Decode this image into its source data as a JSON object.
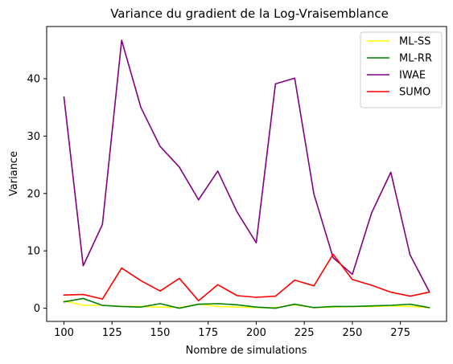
{
  "chart_data": {
    "type": "line",
    "title": "Variance du gradient de la Log-Vraisemblance",
    "xlabel": "Nombre de simulations",
    "ylabel": "Variance",
    "x": [
      100,
      110,
      120,
      130,
      140,
      150,
      160,
      170,
      180,
      190,
      200,
      210,
      220,
      230,
      240,
      250,
      260,
      270,
      280,
      290
    ],
    "xlim": [
      91,
      299
    ],
    "ylim": [
      -2.3,
      49.1
    ],
    "xticks": [
      100,
      125,
      150,
      175,
      200,
      225,
      250,
      275
    ],
    "yticks": [
      0,
      10,
      20,
      30,
      40
    ],
    "grid": false,
    "legend_position": "top-right",
    "series": [
      {
        "name": "ML-SS",
        "color": "#ffff00",
        "values": [
          1.3,
          0.5,
          0.5,
          0.3,
          0.3,
          0.2,
          0.1,
          0.7,
          0.3,
          0.2,
          0.1,
          0.1,
          0.6,
          0.1,
          0.2,
          0.3,
          0.3,
          0.4,
          0.3,
          0.1
        ]
      },
      {
        "name": "ML-RR",
        "color": "#008000",
        "values": [
          1.1,
          1.7,
          0.5,
          0.3,
          0.2,
          0.8,
          0.0,
          0.7,
          0.8,
          0.6,
          0.2,
          0.0,
          0.7,
          0.1,
          0.3,
          0.3,
          0.4,
          0.5,
          0.7,
          0.1
        ]
      },
      {
        "name": "IWAE",
        "color": "#800080",
        "values": [
          36.8,
          7.4,
          14.6,
          46.7,
          35.0,
          28.2,
          24.6,
          18.9,
          23.9,
          16.8,
          11.4,
          39.1,
          40.1,
          19.9,
          8.8,
          5.9,
          16.6,
          23.7,
          9.3,
          2.9
        ]
      },
      {
        "name": "SUMO",
        "color": "#ff0000",
        "values": [
          2.3,
          2.4,
          1.6,
          7.0,
          4.8,
          3.0,
          5.2,
          1.3,
          4.1,
          2.2,
          1.9,
          2.1,
          4.9,
          3.9,
          9.4,
          5.0,
          4.0,
          2.8,
          2.1,
          2.8
        ]
      }
    ]
  }
}
